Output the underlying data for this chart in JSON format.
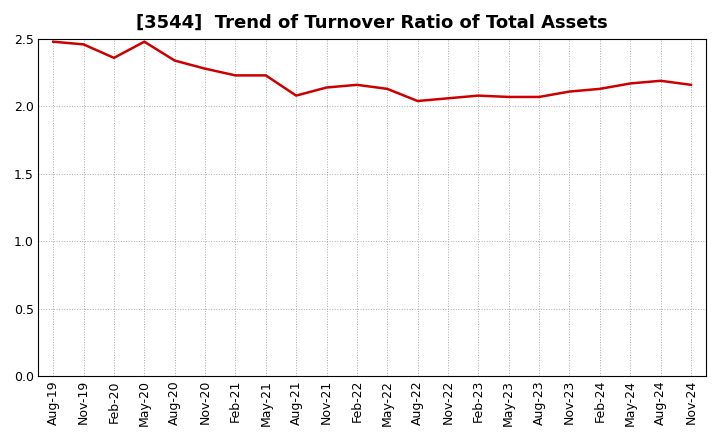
{
  "title": "[3544]  Trend of Turnover Ratio of Total Assets",
  "x_labels": [
    "Aug-19",
    "Nov-19",
    "Feb-20",
    "May-20",
    "Aug-20",
    "Nov-20",
    "Feb-21",
    "May-21",
    "Aug-21",
    "Nov-21",
    "Feb-22",
    "May-22",
    "Aug-22",
    "Nov-22",
    "Feb-23",
    "May-23",
    "Aug-23",
    "Nov-23",
    "Feb-24",
    "May-24",
    "Aug-24",
    "Nov-24"
  ],
  "y_values": [
    2.48,
    2.46,
    2.36,
    2.48,
    2.34,
    2.28,
    2.23,
    2.23,
    2.08,
    2.14,
    2.16,
    2.13,
    2.04,
    2.06,
    2.08,
    2.07,
    2.07,
    2.11,
    2.13,
    2.17,
    2.19,
    2.16
  ],
  "line_color": "#cc0000",
  "line_width": 1.8,
  "ylim": [
    0.0,
    2.5
  ],
  "yticks": [
    0.0,
    0.5,
    1.0,
    1.5,
    2.0,
    2.5
  ],
  "ytick_labels": [
    "0.0",
    "0.5",
    "1.0",
    "1.5",
    "2.0",
    "2.5"
  ],
  "background_color": "#ffffff",
  "plot_bg_color": "#ffffff",
  "grid_color": "#aaaaaa",
  "title_fontsize": 13,
  "tick_fontsize": 9
}
